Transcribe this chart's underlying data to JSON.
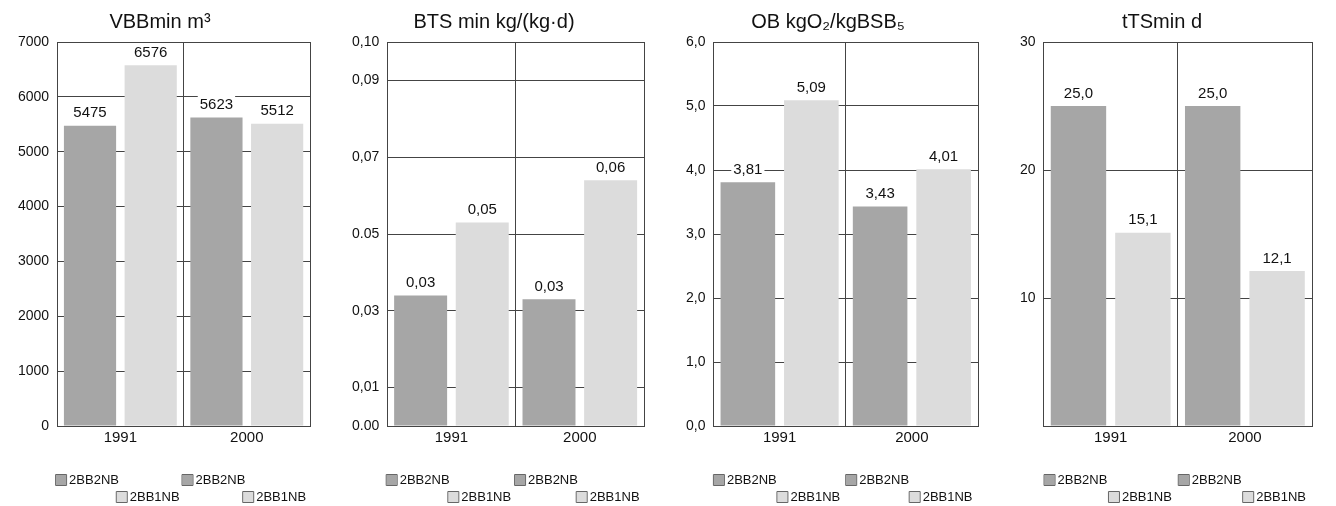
{
  "chart_data": [
    {
      "type": "bar",
      "title": "VBBmin m³",
      "categories": [
        "1991",
        "2000"
      ],
      "series": [
        {
          "name": "2BB2NB",
          "color": "#a6a6a6",
          "values": [
            5475,
            5623
          ],
          "value_labels": [
            "5475",
            "5623"
          ]
        },
        {
          "name": "2BB1NB",
          "color": "#dcdcdc",
          "values": [
            6576,
            5512
          ],
          "value_labels": [
            "6576",
            "5512"
          ]
        }
      ],
      "ylim": [
        0,
        7000
      ],
      "yticks": [
        0,
        1000,
        2000,
        3000,
        4000,
        5000,
        6000,
        7000
      ],
      "grid": true,
      "legend": "bottom"
    },
    {
      "type": "bar",
      "title": "BTS min kg/(kg·d)",
      "categories": [
        "1991",
        "2000"
      ],
      "series": [
        {
          "name": "2BB2NB",
          "color": "#a6a6a6",
          "values": [
            0.034,
            0.033
          ],
          "value_labels": [
            "0,03",
            "0,03"
          ]
        },
        {
          "name": "2BB1NB",
          "color": "#dcdcdc",
          "values": [
            0.053,
            0.064
          ],
          "value_labels": [
            "0,05",
            "0,06"
          ]
        }
      ],
      "ylim": [
        0,
        0.1
      ],
      "yticks": [
        {
          "value": 0,
          "label": "0.00"
        },
        {
          "value": 0.01,
          "label": "0,01"
        },
        {
          "value": 0.03,
          "label": "0,03"
        },
        0.05,
        {
          "value": 0.07,
          "label": "0,07"
        },
        {
          "value": 0.09,
          "label": "0,09"
        },
        {
          "value": 0.1,
          "label": "0,10"
        }
      ],
      "grid": true,
      "legend": "bottom"
    },
    {
      "type": "bar",
      "title": "OB kgO₂/kgBSB₅",
      "categories": [
        "1991",
        "2000"
      ],
      "series": [
        {
          "name": "2BB2NB",
          "color": "#a6a6a6",
          "values": [
            3.81,
            3.43
          ],
          "value_labels": [
            "3,81",
            "3,43"
          ]
        },
        {
          "name": "2BB1NB",
          "color": "#dcdcdc",
          "values": [
            5.09,
            4.01
          ],
          "value_labels": [
            "5,09",
            "4,01"
          ]
        }
      ],
      "ylim": [
        0,
        6
      ],
      "yticks": [
        {
          "value": 0,
          "label": "0,0"
        },
        {
          "value": 1,
          "label": "1,0"
        },
        {
          "value": 2,
          "label": "2,0"
        },
        {
          "value": 3,
          "label": "3,0"
        },
        {
          "value": 4,
          "label": "4,0"
        },
        {
          "value": 5,
          "label": "5,0"
        },
        {
          "value": 6,
          "label": "6,0"
        }
      ],
      "grid": true,
      "legend": "bottom"
    },
    {
      "type": "bar",
      "title": "tTSmin d",
      "categories": [
        "1991",
        "2000"
      ],
      "series": [
        {
          "name": "2BB2NB",
          "color": "#a6a6a6",
          "values": [
            25.0,
            25.0
          ],
          "value_labels": [
            "25,0",
            "25,0"
          ]
        },
        {
          "name": "2BB1NB",
          "color": "#dcdcdc",
          "values": [
            15.1,
            12.1
          ],
          "value_labels": [
            "15,1",
            "12,1"
          ]
        }
      ],
      "ylim": [
        0,
        30
      ],
      "yticks": [
        {
          "value": 0,
          "label": null
        },
        10,
        20,
        30
      ],
      "grid": true,
      "legend": "bottom"
    }
  ]
}
